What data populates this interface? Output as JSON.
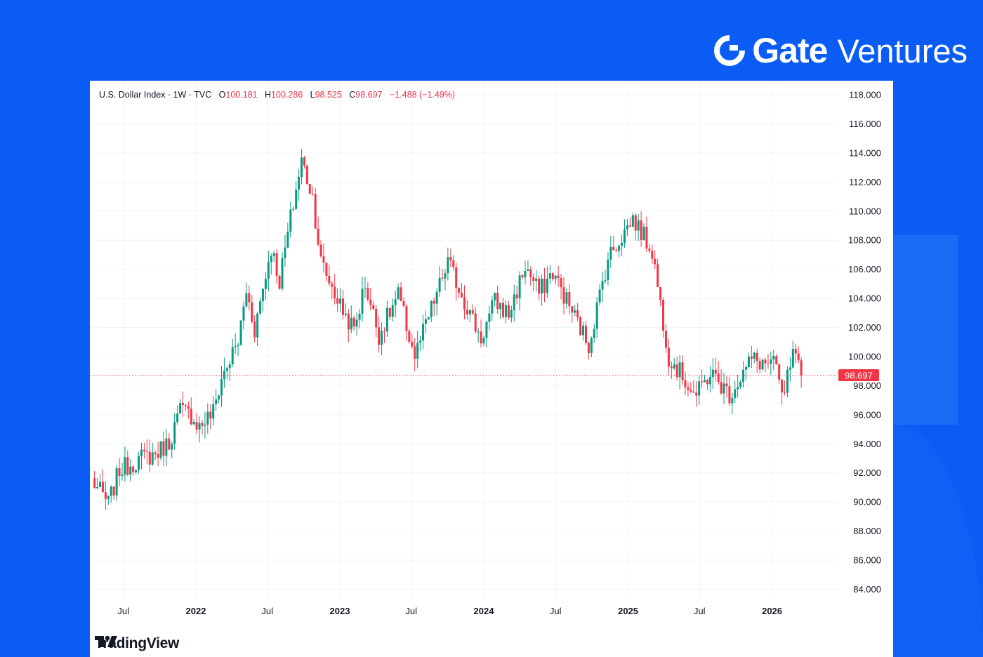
{
  "brand": {
    "gate": "Gate",
    "ventures": "Ventures",
    "colors": {
      "text": "#ffffff",
      "background": "#0a5cf5"
    }
  },
  "legend": {
    "symbol": "U.S. Dollar Index · 1W · TVC",
    "o_label": "O",
    "o_value": "100.181",
    "h_label": "H",
    "h_value": "100.286",
    "l_label": "L",
    "l_value": "98.525",
    "c_label": "C",
    "c_value": "98.697",
    "change": "−1.488 (−1.49%)"
  },
  "footer": {
    "tradingview": "TradingView"
  },
  "chart_data": {
    "type": "candlestick",
    "title": "U.S. Dollar Index · 1W · TVC",
    "ylim": [
      83,
      118.5
    ],
    "y_ticks": [
      {
        "value": 118,
        "label": "118.000"
      },
      {
        "value": 116,
        "label": "116.000"
      },
      {
        "value": 114,
        "label": "114.000"
      },
      {
        "value": 112,
        "label": "112.000"
      },
      {
        "value": 110,
        "label": "110.000"
      },
      {
        "value": 108,
        "label": "108.000"
      },
      {
        "value": 106,
        "label": "106.000"
      },
      {
        "value": 104,
        "label": "104.000"
      },
      {
        "value": 102,
        "label": "102.000"
      },
      {
        "value": 100,
        "label": "100.000"
      },
      {
        "value": 98,
        "label": "98.000"
      },
      {
        "value": 96,
        "label": "96.000"
      },
      {
        "value": 94,
        "label": "94.000"
      },
      {
        "value": 92,
        "label": "92.000"
      },
      {
        "value": 90,
        "label": "90.000"
      },
      {
        "value": 88,
        "label": "88.000"
      },
      {
        "value": 86,
        "label": "86.000"
      },
      {
        "value": 84,
        "label": "84.000"
      }
    ],
    "x_ticks": [
      {
        "date": "2021-07-01",
        "label": "Jul",
        "bold": false
      },
      {
        "date": "2022-01-01",
        "label": "2022",
        "bold": true
      },
      {
        "date": "2022-07-01",
        "label": "Jul",
        "bold": false
      },
      {
        "date": "2023-01-01",
        "label": "2023",
        "bold": true
      },
      {
        "date": "2023-07-01",
        "label": "Jul",
        "bold": false
      },
      {
        "date": "2024-01-01",
        "label": "2024",
        "bold": true
      },
      {
        "date": "2024-07-01",
        "label": "Jul",
        "bold": false
      },
      {
        "date": "2025-01-01",
        "label": "2025",
        "bold": true
      },
      {
        "date": "2025-07-01",
        "label": "Jul",
        "bold": false
      },
      {
        "date": "2026-01-01",
        "label": "2026",
        "bold": true
      }
    ],
    "last_price": {
      "value": 98.697,
      "label": "98.697"
    },
    "colors": {
      "up": "#089981",
      "down": "#f23645",
      "grid": "#f0f3fa",
      "axis_text": "#131722"
    },
    "anchors": [
      [
        "2021-04-12",
        91.5
      ],
      [
        "2021-05-24",
        89.9
      ],
      [
        "2021-06-21",
        92.2
      ],
      [
        "2021-08-16",
        93.0
      ],
      [
        "2021-09-20",
        93.3
      ],
      [
        "2021-10-25",
        94.1
      ],
      [
        "2021-11-22",
        96.3
      ],
      [
        "2021-12-20",
        96.0
      ],
      [
        "2022-01-10",
        95.2
      ],
      [
        "2022-02-14",
        96.2
      ],
      [
        "2022-03-07",
        98.5
      ],
      [
        "2022-04-18",
        101.0
      ],
      [
        "2022-05-09",
        104.5
      ],
      [
        "2022-05-30",
        101.9
      ],
      [
        "2022-07-11",
        107.5
      ],
      [
        "2022-08-01",
        105.2
      ],
      [
        "2022-08-29",
        109.5
      ],
      [
        "2022-09-26",
        113.5
      ],
      [
        "2022-10-24",
        111.0
      ],
      [
        "2022-11-14",
        106.5
      ],
      [
        "2023-01-02",
        103.5
      ],
      [
        "2023-02-06",
        101.8
      ],
      [
        "2023-03-06",
        105.0
      ],
      [
        "2023-04-10",
        101.5
      ],
      [
        "2023-05-29",
        104.2
      ],
      [
        "2023-07-10",
        100.0
      ],
      [
        "2023-10-02",
        106.5
      ],
      [
        "2023-12-25",
        101.2
      ],
      [
        "2024-01-29",
        103.8
      ],
      [
        "2024-03-04",
        102.9
      ],
      [
        "2024-04-15",
        106.2
      ],
      [
        "2024-05-20",
        104.4
      ],
      [
        "2024-06-24",
        105.8
      ],
      [
        "2024-09-23",
        100.8
      ],
      [
        "2024-11-11",
        106.8
      ],
      [
        "2025-01-13",
        109.5
      ],
      [
        "2025-03-03",
        107.3
      ],
      [
        "2025-04-14",
        100.0
      ],
      [
        "2025-06-23",
        97.3
      ],
      [
        "2025-07-28",
        98.9
      ],
      [
        "2025-09-15",
        97.4
      ],
      [
        "2025-11-10",
        99.8
      ],
      [
        "2026-01-12",
        99.3
      ],
      [
        "2026-01-26",
        97.0
      ],
      [
        "2026-02-23",
        100.0
      ],
      [
        "2026-03-16",
        98.7
      ]
    ]
  }
}
